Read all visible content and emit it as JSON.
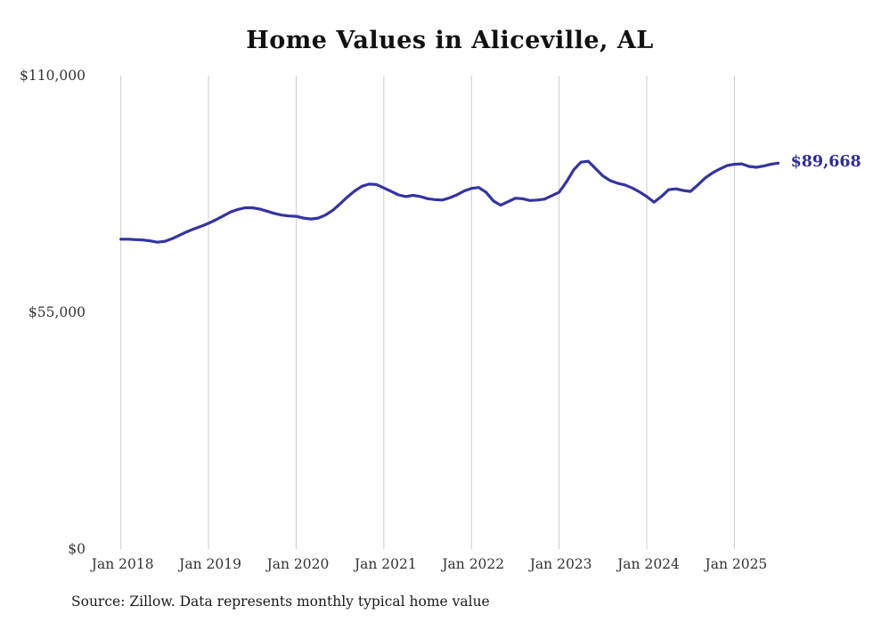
{
  "chart": {
    "title": "Home Values in Aliceville, AL",
    "end_label": "$89,668",
    "source_note": "Source: Zillow. Data represents monthly typical home value"
  },
  "chart_data": {
    "type": "line",
    "title": "Home Values in Aliceville, AL",
    "xlabel": "",
    "ylabel": "",
    "frequency": "monthly",
    "start_month": "2018-01",
    "end_month": "2025-07",
    "ylim": [
      0,
      110000
    ],
    "grid": "vertical-only",
    "legend": "none",
    "line_color": "#3434a0",
    "gridline_color": "#cccccc",
    "x_tick_labels": [
      "Jan 2018",
      "Jan 2019",
      "Jan 2020",
      "Jan 2021",
      "Jan 2022",
      "Jan 2023",
      "Jan 2024",
      "Jan 2025"
    ],
    "y_ticks": [
      {
        "label": "$110,000",
        "value": 110000
      },
      {
        "label": "$55,000",
        "value": 55000
      },
      {
        "label": "$0",
        "value": 0
      }
    ],
    "end_annotation": {
      "label": "$89,668",
      "value": 89668
    },
    "series": [
      {
        "name": "Typical home value",
        "values": [
          72000,
          72000,
          71900,
          71800,
          71600,
          71300,
          71500,
          72100,
          72900,
          73700,
          74400,
          75000,
          75700,
          76500,
          77400,
          78300,
          78900,
          79300,
          79300,
          79000,
          78500,
          78000,
          77600,
          77400,
          77300,
          76900,
          76700,
          76900,
          77600,
          78700,
          80200,
          81800,
          83200,
          84300,
          84800,
          84700,
          83900,
          83100,
          82300,
          81900,
          82200,
          81900,
          81400,
          81200,
          81100,
          81600,
          82300,
          83200,
          83800,
          84000,
          82900,
          80900,
          79900,
          80700,
          81500,
          81400,
          81000,
          81100,
          81300,
          82100,
          82900,
          85300,
          88100,
          89900,
          90100,
          88400,
          86700,
          85600,
          85000,
          84600,
          83900,
          83000,
          81900,
          80600,
          81900,
          83500,
          83700,
          83300,
          83100,
          84600,
          86200,
          87400,
          88300,
          89100,
          89400,
          89500,
          88900,
          88700,
          89000,
          89400,
          89668
        ]
      }
    ]
  }
}
